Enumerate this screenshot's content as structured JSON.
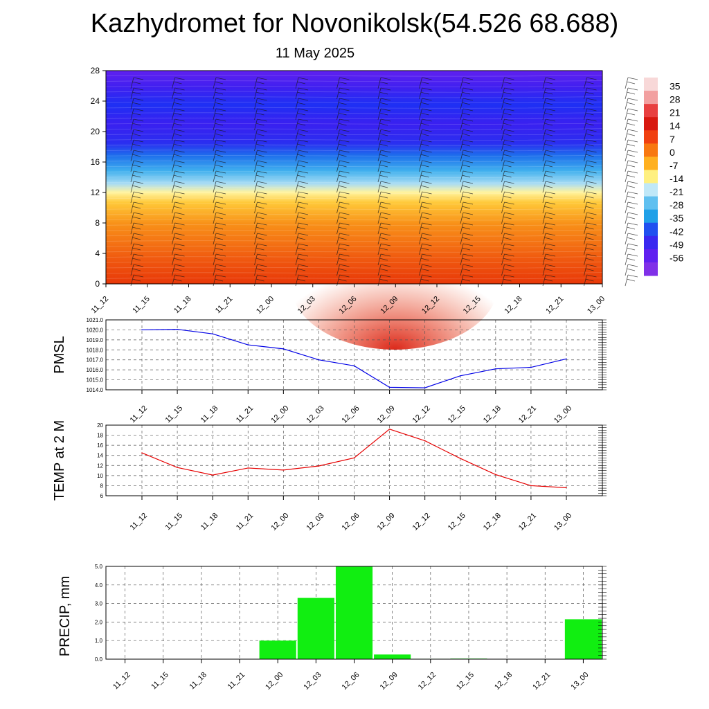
{
  "title": "Kazhydromet for Novonikolsk(54.526 68.688)",
  "subtitle": "11 May 2025",
  "colors": {
    "pmsl_line": "#0000e6",
    "temp_line": "#e60000",
    "precip_bar": "#11ee11",
    "grid": "#555555"
  },
  "x_labels": [
    "11_12",
    "11_15",
    "11_18",
    "11_21",
    "12_00",
    "12_03",
    "12_06",
    "12_09",
    "12_12",
    "12_15",
    "12_18",
    "12_21",
    "13_00"
  ],
  "chart_data": [
    {
      "type": "heatmap",
      "title": "",
      "xlabel": "",
      "ylabel": "",
      "y_ticks": [
        0,
        4,
        8,
        12,
        16,
        20,
        24,
        28
      ],
      "ylim": [
        0,
        28
      ],
      "colorbar_labels": [
        "35",
        "28",
        "21",
        "14",
        "7",
        "0",
        "-7",
        "-14",
        "-21",
        "-28",
        "-35",
        "-42",
        "-49",
        "-56"
      ],
      "colorbar_colors": [
        "#f8d8d8",
        "#f2a0a0",
        "#e84040",
        "#d81810",
        "#f04010",
        "#f87810",
        "#ffb020",
        "#fff080",
        "#c0e8f8",
        "#60c0f0",
        "#20a0e8",
        "#2050f0",
        "#3a28f0",
        "#6020f0",
        "#8030e8"
      ],
      "note_values": "temperature-like field shaded by height; wind barbs overlaid"
    },
    {
      "type": "line",
      "ylabel": "PMSL",
      "x": [
        "11_12",
        "11_15",
        "11_18",
        "11_21",
        "12_00",
        "12_03",
        "12_06",
        "12_09",
        "12_12",
        "12_15",
        "12_18",
        "12_21",
        "13_00"
      ],
      "values": [
        1020.0,
        1020.05,
        1019.6,
        1018.5,
        1018.1,
        1017.0,
        1016.4,
        1014.25,
        1014.2,
        1015.4,
        1016.1,
        1016.25,
        1017.1
      ],
      "ylim": [
        1014.0,
        1021.0
      ],
      "y_ticks": [
        "1014.0",
        "1015.0",
        "1016.0",
        "1017.0",
        "1018.0",
        "1019.0",
        "1020.0",
        "1021.0"
      ],
      "grid": true
    },
    {
      "type": "line",
      "ylabel": "TEMP at 2 M",
      "x": [
        "11_12",
        "11_15",
        "11_18",
        "11_21",
        "12_00",
        "12_03",
        "12_06",
        "12_09",
        "12_12",
        "12_15",
        "12_18",
        "12_21",
        "13_00"
      ],
      "values": [
        14.5,
        11.6,
        10.1,
        11.5,
        11.1,
        11.9,
        13.5,
        19.2,
        16.9,
        13.4,
        10.2,
        8.0,
        7.6
      ],
      "ylim": [
        6,
        20
      ],
      "y_ticks": [
        "6",
        "8",
        "10",
        "12",
        "14",
        "16",
        "18",
        "20"
      ],
      "grid": true
    },
    {
      "type": "bar",
      "ylabel": "PRECIP, mm",
      "categories": [
        "11_12",
        "11_15",
        "11_18",
        "11_21",
        "12_00",
        "12_03",
        "12_06",
        "12_09",
        "12_12",
        "12_15",
        "12_18",
        "12_21",
        "13_00"
      ],
      "values": [
        0,
        0,
        0,
        0,
        1.0,
        3.3,
        5.0,
        0.25,
        0.02,
        0.03,
        0,
        0,
        2.15
      ],
      "ylim": [
        0,
        5.0
      ],
      "y_ticks": [
        "0.0",
        "1.0",
        "2.0",
        "3.0",
        "4.0",
        "5.0"
      ],
      "grid": true
    }
  ]
}
